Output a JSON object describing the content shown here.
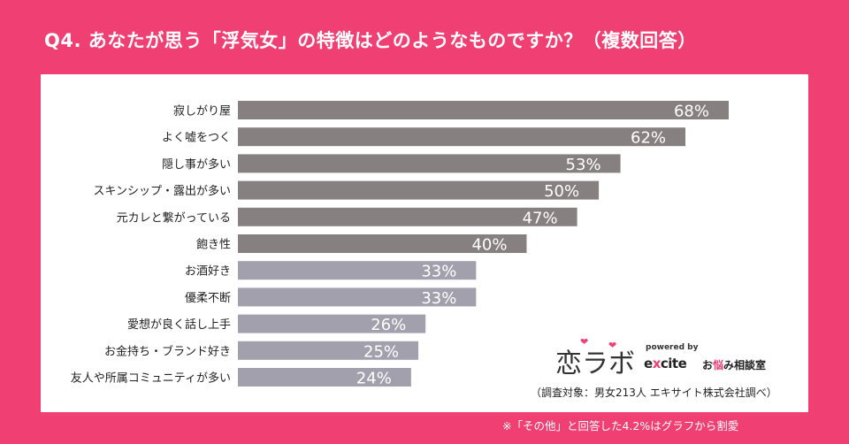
{
  "title": "Q4. あなたが思う「浮気女」の特徴はどのようなものですか？（複数回答）",
  "chart_data": {
    "type": "bar",
    "orientation": "horizontal",
    "categories": [
      "寂しがり屋",
      "よく嘘をつく",
      "隠し事が多い",
      "スキンシップ・露出が多い",
      "元カレと繋がっている",
      "飽き性",
      "お酒好き",
      "優柔不断",
      "愛想が良く話し上手",
      "お金持ち・ブランド好き",
      "友人や所属コミュニティが多い"
    ],
    "values": [
      68,
      62,
      53,
      50,
      47,
      40,
      33,
      33,
      26,
      25,
      24
    ],
    "value_labels": [
      "68%",
      "62%",
      "53%",
      "50%",
      "47%",
      "40%",
      "33%",
      "33%",
      "26%",
      "25%",
      "24%"
    ],
    "xlim": [
      0,
      68
    ],
    "bar_colors": [
      "#878081",
      "#878081",
      "#878081",
      "#878081",
      "#878081",
      "#878081",
      "#a3a0ad",
      "#a3a0ad",
      "#a3a0ad",
      "#a3a0ad",
      "#a3a0ad"
    ],
    "grid": false
  },
  "logo": {
    "brand": "恋ラボ",
    "powered_by": "powered by",
    "excite_prefix": "e",
    "excite_x": "x",
    "excite_suffix": "cite",
    "service_pre": "お",
    "service_accent": "悩",
    "service_post": "み相談室"
  },
  "survey_note": "（調査対象：男女213人 エキサイト株式会社調べ）",
  "footnote": "※「その他」と回答した4.2%はグラフから割愛",
  "colors": {
    "background": "#ef3f73",
    "panel": "#ffffff",
    "bar_dark": "#878081",
    "bar_light": "#a3a0ad",
    "value_label": "#ffffff"
  }
}
